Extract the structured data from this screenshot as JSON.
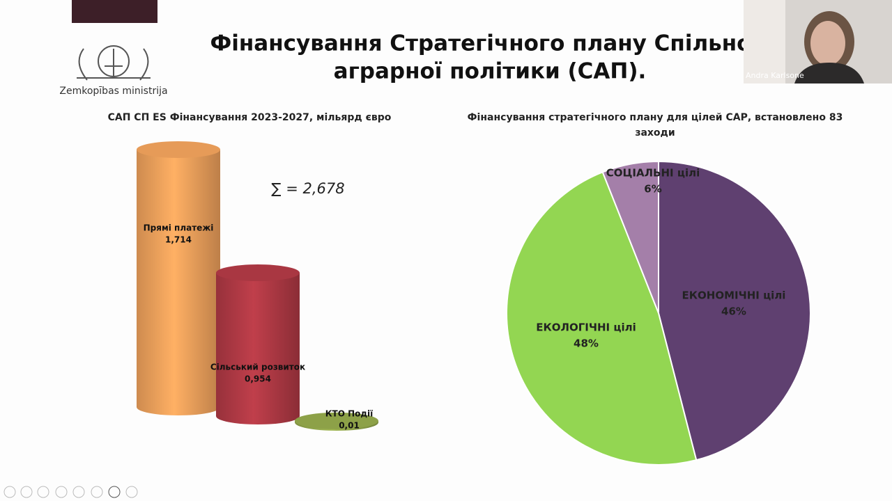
{
  "header": {
    "title_lines": [
      "Фінансування Стратегічного плану Спільно",
      "аграрної політики (САП)."
    ],
    "logo_text": "Zemkopības ministrija"
  },
  "video": {
    "name": "Andra Karlsone"
  },
  "chart_data": [
    {
      "type": "bar",
      "title": "САП СП ES Фінансування 2023-2027, мільярд євро",
      "annotation": "∑ = 2,678",
      "categories": [
        "Прямі платежі",
        "Сільський розвиток",
        "КТО Події"
      ],
      "values": [
        1.714,
        0.954,
        0.01
      ],
      "value_labels": [
        "1,714",
        "0,954",
        "0,01"
      ],
      "colors": [
        "#f2a35d",
        "#b23a45",
        "#94a94c"
      ]
    },
    {
      "type": "pie",
      "title": "Фінансування стратегічного плану для цілей САР, встановлено 83 заходи",
      "categories": [
        "ЕКОНОМІЧНІ цілі",
        "ЕКОЛОГІЧНІ цілі",
        "СОЦІАЛЬНІ цілі"
      ],
      "values": [
        46,
        48,
        6
      ],
      "value_labels": [
        "46%",
        "48%",
        "6%"
      ],
      "colors": [
        "#5f4070",
        "#93d652",
        "#a47fa9"
      ]
    }
  ]
}
